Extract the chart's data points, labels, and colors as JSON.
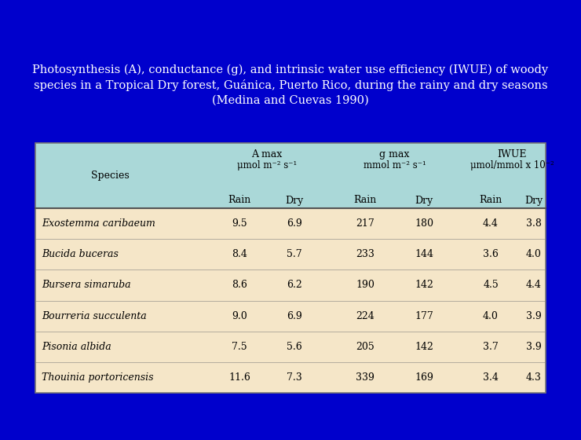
{
  "title_line1": "Photosynthesis (A), conductance (g), and intrinsic water use efficiency (IWUE) of woody",
  "title_line2": "species in a Tropical Dry forest, Guánica, Puerto Rico, during the rainy and dry seasons",
  "title_line3": "(Medina and Cuevas 1990)",
  "bg_color": "#0000cc",
  "table_header_bg": "#aad8d8",
  "table_data_bg": "#f5e6c8",
  "table_border_color": "#777777",
  "col_headers": {
    "species": "Species",
    "amax_label": "A max",
    "amax_unit": "μmol m⁻² s⁻¹",
    "gmax_label": "g max",
    "gmax_unit": "mmol m⁻² s⁻¹",
    "iwue_label": "IWUE",
    "iwue_unit": "μmol/mmol x 10⁻²",
    "rain": "Rain",
    "dry": "Dry"
  },
  "species": [
    "Exostemma caribaeum",
    "Bucida buceras",
    "Bursera simaruba",
    "Bourreria succulenta",
    "Pisonia albida",
    "Thouinia portoricensis"
  ],
  "amax_rain": [
    9.5,
    8.4,
    8.6,
    9.0,
    7.5,
    11.6
  ],
  "amax_dry": [
    6.9,
    5.7,
    6.2,
    6.9,
    5.6,
    7.3
  ],
  "gmax_rain": [
    217,
    233,
    190,
    224,
    205,
    339
  ],
  "gmax_dry": [
    180,
    144,
    142,
    177,
    142,
    169
  ],
  "iwue_rain": [
    4.4,
    3.6,
    4.5,
    4.0,
    3.7,
    3.4
  ],
  "iwue_dry": [
    3.8,
    4.0,
    4.4,
    3.9,
    3.9,
    4.3
  ],
  "title_color": "#ffffff",
  "header_text_color": "#000000",
  "data_text_color": "#000000",
  "title_fontsize": 10.5,
  "header_fontsize": 9,
  "data_fontsize": 9
}
